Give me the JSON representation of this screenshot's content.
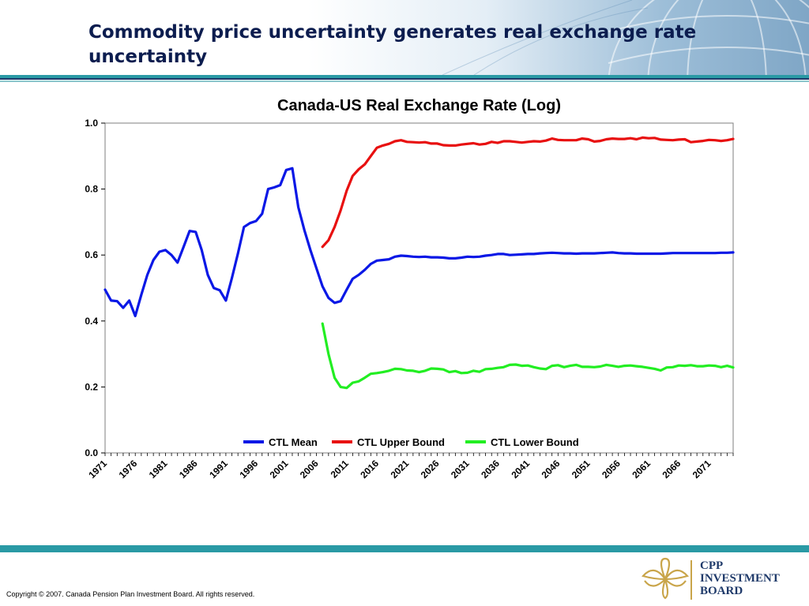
{
  "header": {
    "title": "Commodity price uncertainty generates real exchange rate uncertainty"
  },
  "footer": {
    "copyright": "Copyright © 2007. Canada Pension Plan Investment Board. All rights reserved.",
    "logo_lines": [
      "CPP",
      "INVESTMENT",
      "BOARD"
    ]
  },
  "colors": {
    "header_text": "#0c1d4f",
    "teal_rule": "#2a9aa5",
    "mean": "#0a18e6",
    "upper": "#e81010",
    "lower": "#22ee22"
  },
  "chart_data": {
    "type": "line",
    "title": "Canada-US Real Exchange Rate (Log)",
    "xlabel": "",
    "ylabel": "",
    "x_start": 1971,
    "x_end": 2075,
    "ylim": [
      0,
      1.0
    ],
    "yticks": [
      "0.0",
      "0.2",
      "0.4",
      "0.6",
      "0.8",
      "1.0"
    ],
    "xtick_labels": [
      "1971",
      "1976",
      "1981",
      "1986",
      "1991",
      "1996",
      "2001",
      "2006",
      "2011",
      "2016",
      "2021",
      "2026",
      "2031",
      "2036",
      "2041",
      "2046",
      "2051",
      "2056",
      "2061",
      "2066",
      "2071"
    ],
    "grid": false,
    "legend_position": "bottom",
    "series": [
      {
        "name": "CTL Mean",
        "color": "#0a18e6",
        "points": [
          [
            1971,
            0.495
          ],
          [
            1972,
            0.462
          ],
          [
            1973,
            0.46
          ],
          [
            1974,
            0.44
          ],
          [
            1975,
            0.462
          ],
          [
            1976,
            0.415
          ],
          [
            1977,
            0.48
          ],
          [
            1978,
            0.54
          ],
          [
            1979,
            0.585
          ],
          [
            1980,
            0.61
          ],
          [
            1981,
            0.615
          ],
          [
            1982,
            0.6
          ],
          [
            1983,
            0.577
          ],
          [
            1984,
            0.625
          ],
          [
            1985,
            0.673
          ],
          [
            1986,
            0.67
          ],
          [
            1987,
            0.615
          ],
          [
            1988,
            0.54
          ],
          [
            1989,
            0.5
          ],
          [
            1990,
            0.493
          ],
          [
            1991,
            0.462
          ],
          [
            1992,
            0.53
          ],
          [
            1993,
            0.605
          ],
          [
            1994,
            0.685
          ],
          [
            1995,
            0.697
          ],
          [
            1996,
            0.703
          ],
          [
            1997,
            0.725
          ],
          [
            1998,
            0.8
          ],
          [
            1999,
            0.805
          ],
          [
            2000,
            0.812
          ],
          [
            2001,
            0.858
          ],
          [
            2002,
            0.863
          ],
          [
            2003,
            0.745
          ],
          [
            2004,
            0.675
          ],
          [
            2005,
            0.615
          ],
          [
            2006,
            0.56
          ],
          [
            2007,
            0.505
          ],
          [
            2008,
            0.47
          ],
          [
            2009,
            0.455
          ],
          [
            2010,
            0.46
          ],
          [
            2011,
            0.495
          ],
          [
            2012,
            0.528
          ],
          [
            2013,
            0.54
          ],
          [
            2014,
            0.555
          ],
          [
            2015,
            0.573
          ],
          [
            2016,
            0.583
          ],
          [
            2017,
            0.585
          ],
          [
            2018,
            0.587
          ],
          [
            2019,
            0.595
          ],
          [
            2020,
            0.598
          ],
          [
            2021,
            0.597
          ],
          [
            2022,
            0.595
          ],
          [
            2023,
            0.594
          ],
          [
            2024,
            0.595
          ],
          [
            2025,
            0.593
          ],
          [
            2026,
            0.593
          ],
          [
            2027,
            0.592
          ],
          [
            2028,
            0.59
          ],
          [
            2029,
            0.59
          ],
          [
            2030,
            0.592
          ],
          [
            2031,
            0.595
          ],
          [
            2032,
            0.594
          ],
          [
            2033,
            0.595
          ],
          [
            2034,
            0.598
          ],
          [
            2035,
            0.6
          ],
          [
            2036,
            0.603
          ],
          [
            2037,
            0.603
          ],
          [
            2038,
            0.6
          ],
          [
            2039,
            0.601
          ],
          [
            2040,
            0.602
          ],
          [
            2041,
            0.603
          ],
          [
            2042,
            0.603
          ],
          [
            2043,
            0.605
          ],
          [
            2044,
            0.606
          ],
          [
            2045,
            0.607
          ],
          [
            2046,
            0.606
          ],
          [
            2047,
            0.605
          ],
          [
            2048,
            0.605
          ],
          [
            2049,
            0.604
          ],
          [
            2050,
            0.605
          ],
          [
            2051,
            0.605
          ],
          [
            2052,
            0.605
          ],
          [
            2053,
            0.606
          ],
          [
            2054,
            0.607
          ],
          [
            2055,
            0.608
          ],
          [
            2056,
            0.606
          ],
          [
            2057,
            0.605
          ],
          [
            2058,
            0.605
          ],
          [
            2059,
            0.604
          ],
          [
            2060,
            0.604
          ],
          [
            2061,
            0.604
          ],
          [
            2062,
            0.604
          ],
          [
            2063,
            0.604
          ],
          [
            2064,
            0.605
          ],
          [
            2065,
            0.606
          ],
          [
            2066,
            0.606
          ],
          [
            2067,
            0.606
          ],
          [
            2068,
            0.606
          ],
          [
            2069,
            0.606
          ],
          [
            2070,
            0.606
          ],
          [
            2071,
            0.606
          ],
          [
            2072,
            0.606
          ],
          [
            2073,
            0.607
          ],
          [
            2074,
            0.607
          ],
          [
            2075,
            0.608
          ]
        ]
      },
      {
        "name": "CTL Upper Bound",
        "color": "#e81010",
        "points": [
          [
            2007,
            0.625
          ],
          [
            2008,
            0.645
          ],
          [
            2009,
            0.685
          ],
          [
            2010,
            0.735
          ],
          [
            2011,
            0.795
          ],
          [
            2012,
            0.84
          ],
          [
            2013,
            0.86
          ],
          [
            2014,
            0.875
          ],
          [
            2015,
            0.9
          ],
          [
            2016,
            0.925
          ],
          [
            2017,
            0.932
          ],
          [
            2018,
            0.937
          ],
          [
            2019,
            0.945
          ],
          [
            2020,
            0.948
          ],
          [
            2021,
            0.943
          ],
          [
            2022,
            0.942
          ],
          [
            2023,
            0.941
          ],
          [
            2024,
            0.942
          ],
          [
            2025,
            0.938
          ],
          [
            2026,
            0.938
          ],
          [
            2027,
            0.933
          ],
          [
            2028,
            0.932
          ],
          [
            2029,
            0.932
          ],
          [
            2030,
            0.935
          ],
          [
            2031,
            0.937
          ],
          [
            2032,
            0.939
          ],
          [
            2033,
            0.935
          ],
          [
            2034,
            0.937
          ],
          [
            2035,
            0.943
          ],
          [
            2036,
            0.94
          ],
          [
            2037,
            0.945
          ],
          [
            2038,
            0.945
          ],
          [
            2039,
            0.943
          ],
          [
            2040,
            0.941
          ],
          [
            2041,
            0.943
          ],
          [
            2042,
            0.945
          ],
          [
            2043,
            0.944
          ],
          [
            2044,
            0.947
          ],
          [
            2045,
            0.953
          ],
          [
            2046,
            0.949
          ],
          [
            2047,
            0.948
          ],
          [
            2048,
            0.948
          ],
          [
            2049,
            0.948
          ],
          [
            2050,
            0.953
          ],
          [
            2051,
            0.951
          ],
          [
            2052,
            0.944
          ],
          [
            2053,
            0.946
          ],
          [
            2054,
            0.951
          ],
          [
            2055,
            0.953
          ],
          [
            2056,
            0.952
          ],
          [
            2057,
            0.952
          ],
          [
            2058,
            0.954
          ],
          [
            2059,
            0.951
          ],
          [
            2060,
            0.956
          ],
          [
            2061,
            0.954
          ],
          [
            2062,
            0.955
          ],
          [
            2063,
            0.95
          ],
          [
            2064,
            0.949
          ],
          [
            2065,
            0.948
          ],
          [
            2066,
            0.95
          ],
          [
            2067,
            0.951
          ],
          [
            2068,
            0.942
          ],
          [
            2069,
            0.944
          ],
          [
            2070,
            0.946
          ],
          [
            2071,
            0.949
          ],
          [
            2072,
            0.948
          ],
          [
            2073,
            0.946
          ],
          [
            2074,
            0.948
          ],
          [
            2075,
            0.952
          ]
        ]
      },
      {
        "name": "CTL Lower Bound",
        "color": "#22ee22",
        "points": [
          [
            2007,
            0.392
          ],
          [
            2008,
            0.3
          ],
          [
            2009,
            0.228
          ],
          [
            2010,
            0.2
          ],
          [
            2011,
            0.197
          ],
          [
            2012,
            0.213
          ],
          [
            2013,
            0.217
          ],
          [
            2014,
            0.228
          ],
          [
            2015,
            0.24
          ],
          [
            2016,
            0.242
          ],
          [
            2017,
            0.245
          ],
          [
            2018,
            0.249
          ],
          [
            2019,
            0.255
          ],
          [
            2020,
            0.254
          ],
          [
            2021,
            0.25
          ],
          [
            2022,
            0.249
          ],
          [
            2023,
            0.245
          ],
          [
            2024,
            0.249
          ],
          [
            2025,
            0.256
          ],
          [
            2026,
            0.255
          ],
          [
            2027,
            0.253
          ],
          [
            2028,
            0.245
          ],
          [
            2029,
            0.248
          ],
          [
            2030,
            0.242
          ],
          [
            2031,
            0.243
          ],
          [
            2032,
            0.249
          ],
          [
            2033,
            0.246
          ],
          [
            2034,
            0.254
          ],
          [
            2035,
            0.255
          ],
          [
            2036,
            0.258
          ],
          [
            2037,
            0.26
          ],
          [
            2038,
            0.267
          ],
          [
            2039,
            0.268
          ],
          [
            2040,
            0.264
          ],
          [
            2041,
            0.265
          ],
          [
            2042,
            0.26
          ],
          [
            2043,
            0.256
          ],
          [
            2044,
            0.254
          ],
          [
            2045,
            0.264
          ],
          [
            2046,
            0.266
          ],
          [
            2047,
            0.26
          ],
          [
            2048,
            0.264
          ],
          [
            2049,
            0.267
          ],
          [
            2050,
            0.261
          ],
          [
            2051,
            0.261
          ],
          [
            2052,
            0.26
          ],
          [
            2053,
            0.262
          ],
          [
            2054,
            0.267
          ],
          [
            2055,
            0.264
          ],
          [
            2056,
            0.261
          ],
          [
            2057,
            0.264
          ],
          [
            2058,
            0.265
          ],
          [
            2059,
            0.263
          ],
          [
            2060,
            0.261
          ],
          [
            2061,
            0.258
          ],
          [
            2062,
            0.255
          ],
          [
            2063,
            0.25
          ],
          [
            2064,
            0.259
          ],
          [
            2065,
            0.26
          ],
          [
            2066,
            0.265
          ],
          [
            2067,
            0.264
          ],
          [
            2068,
            0.266
          ],
          [
            2069,
            0.263
          ],
          [
            2070,
            0.263
          ],
          [
            2071,
            0.265
          ],
          [
            2072,
            0.264
          ],
          [
            2073,
            0.26
          ],
          [
            2074,
            0.264
          ],
          [
            2075,
            0.259
          ]
        ]
      }
    ]
  }
}
